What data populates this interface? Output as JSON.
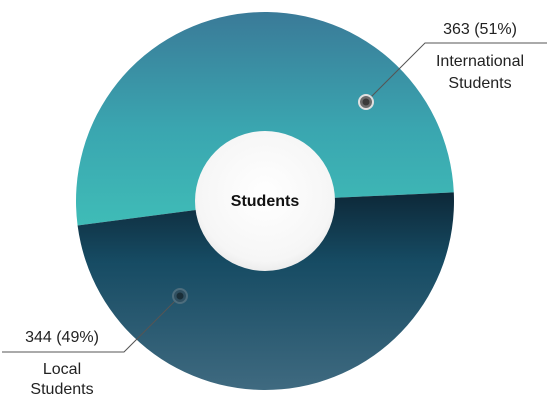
{
  "chart_data": {
    "type": "pie",
    "center_label": "Students",
    "slices": [
      {
        "label_lines": [
          "International",
          "Students"
        ],
        "value": 363,
        "percent_text": "363 (51%)",
        "color_from": "#3fbcb7",
        "color_to": "#3a7a98"
      },
      {
        "label_lines": [
          "Local",
          "Students"
        ],
        "value": 344,
        "percent_text": "344 (49%)",
        "color_from": "#0f2f42",
        "color_to": "#3f6a80"
      }
    ]
  }
}
